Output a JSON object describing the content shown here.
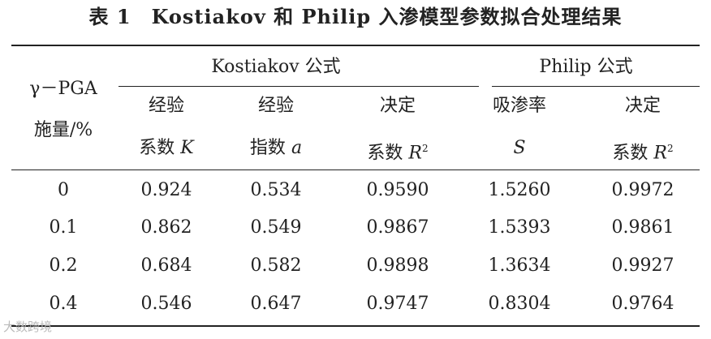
{
  "title": "表 1　Kostiakov 和 Philip 入渗模型参数拟合处理结果",
  "table": {
    "row_header": {
      "line1": "γ－PGA",
      "line2": "施量/%"
    },
    "groups": [
      "Kostiakov 公式",
      "Philip 公式"
    ],
    "columns": [
      {
        "line1": "经验",
        "line2": "系数",
        "var": "K"
      },
      {
        "line1": "经验",
        "line2": "指数",
        "var": "a"
      },
      {
        "line1": "决定",
        "line2": "系数",
        "var": "R",
        "sup": "2"
      },
      {
        "line1": "吸渗率",
        "var": "S"
      },
      {
        "line1": "决定",
        "line2": "系数",
        "var": "R",
        "sup": "2"
      }
    ],
    "rows": [
      [
        "0",
        "0.924",
        "0.534",
        "0.9590",
        "1.5260",
        "0.9972"
      ],
      [
        "0.1",
        "0.862",
        "0.549",
        "0.9867",
        "1.5393",
        "0.9861"
      ],
      [
        "0.2",
        "0.684",
        "0.582",
        "0.9898",
        "1.3634",
        "0.9927"
      ],
      [
        "0.4",
        "0.546",
        "0.647",
        "0.9747",
        "0.8304",
        "0.9764"
      ]
    ]
  },
  "watermark": "大数跨境"
}
